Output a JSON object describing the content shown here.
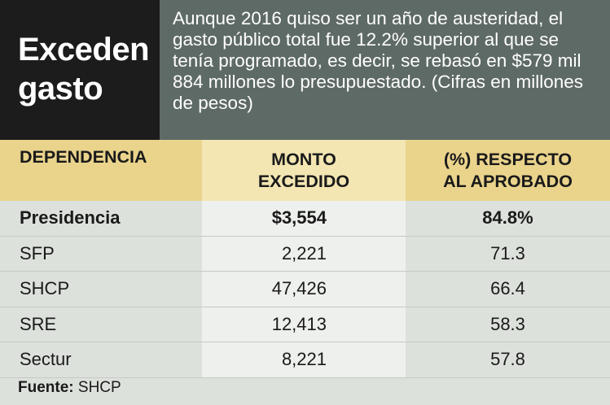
{
  "header": {
    "title_line1": "Exceden",
    "title_line2": "gasto",
    "intro": "Aunque 2016 quiso ser un año de austeridad, el gasto público total fue 12.2% superior al que se tenía programado, es decir, se rebasó en $579 mil 884 millones lo presupuestado. (Cifras en millones de pesos)"
  },
  "table": {
    "columns": {
      "col1": "DEPENDENCIA",
      "col2_line1": "MONTO",
      "col2_line2": "EXCEDIDO",
      "col3_line1": "(%) RESPECTO",
      "col3_line2": "AL APROBADO"
    },
    "rows": [
      {
        "dependencia": "Presidencia",
        "monto": "$3,554",
        "porcentaje": "84.8%"
      },
      {
        "dependencia": "SFP",
        "monto": "2,221",
        "porcentaje": "71.3"
      },
      {
        "dependencia": "SHCP",
        "monto": "47,426",
        "porcentaje": "66.4"
      },
      {
        "dependencia": "SRE",
        "monto": "12,413",
        "porcentaje": "58.3"
      },
      {
        "dependencia": "Sectur",
        "monto": "8,221",
        "porcentaje": "57.8"
      }
    ]
  },
  "source": {
    "label": "Fuente:",
    "value": "SHCP"
  },
  "colors": {
    "header_dark": "#1c1c1c",
    "header_gray": "#5e6a66",
    "column_header": "#ead48c",
    "background": "#dde1dc"
  }
}
